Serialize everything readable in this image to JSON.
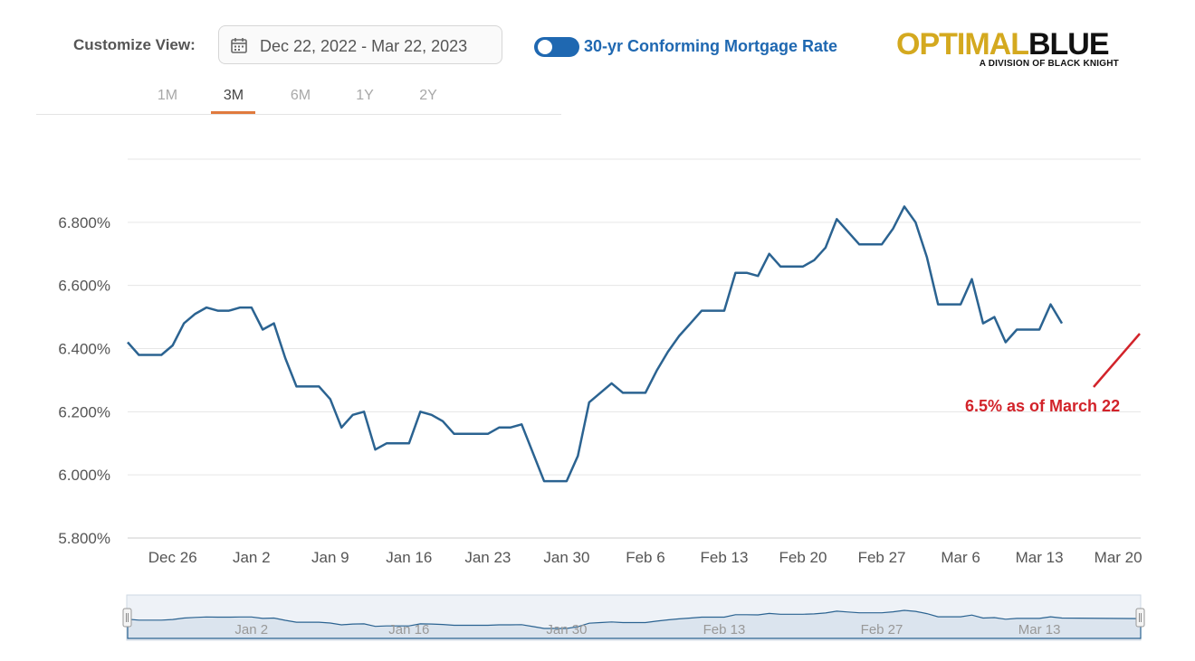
{
  "header": {
    "customize_label": "Customize View:",
    "date_range": "Dec 22, 2022 - Mar 22, 2023",
    "series_label": "30-yr Conforming Mortgage Rate",
    "logo_main_gold": "OPTIMAL",
    "logo_main_black": "BLUE",
    "logo_sub": "A DIVISION OF BLACK KNIGHT",
    "calendar_icon": "calendar-icon",
    "toggle_icon": "toggle-switch"
  },
  "range_tabs": [
    {
      "label": "1M",
      "active": false
    },
    {
      "label": "3M",
      "active": true
    },
    {
      "label": "6M",
      "active": false
    },
    {
      "label": "1Y",
      "active": false
    },
    {
      "label": "2Y",
      "active": false
    }
  ],
  "colors": {
    "line": "#2b6391",
    "accent": "#1f68b1",
    "annotation": "#d2232a",
    "tab_active": "#e07a3e"
  },
  "chart_data": {
    "type": "line",
    "title": "",
    "xlabel": "",
    "ylabel": "",
    "ylim": [
      5.8,
      7.0
    ],
    "xlim": [
      "2022-12-22",
      "2023-03-22"
    ],
    "yticks": [
      "6.800%",
      "6.600%",
      "6.400%",
      "6.200%",
      "6.000%",
      "5.800%"
    ],
    "ytick_values": [
      6.8,
      6.6,
      6.4,
      6.2,
      6.0,
      5.8
    ],
    "xticks": [
      "Dec 26",
      "Jan 2",
      "Jan 9",
      "Jan 16",
      "Jan 23",
      "Jan 30",
      "Feb 6",
      "Feb 13",
      "Feb 20",
      "Feb 27",
      "Mar 6",
      "Mar 13",
      "Mar 20"
    ],
    "xtick_dates": [
      "2022-12-26",
      "2023-01-02",
      "2023-01-09",
      "2023-01-16",
      "2023-01-23",
      "2023-01-30",
      "2023-02-06",
      "2023-02-13",
      "2023-02-20",
      "2023-02-27",
      "2023-03-06",
      "2023-03-13",
      "2023-03-20"
    ],
    "grid": true,
    "series": [
      {
        "points": [
          [
            "2022-12-22",
            6.42
          ],
          [
            "2022-12-23",
            6.38
          ],
          [
            "2022-12-24",
            6.38
          ],
          [
            "2022-12-25",
            6.38
          ],
          [
            "2022-12-26",
            6.41
          ],
          [
            "2022-12-27",
            6.48
          ],
          [
            "2022-12-28",
            6.51
          ],
          [
            "2022-12-29",
            6.53
          ],
          [
            "2022-12-30",
            6.52
          ],
          [
            "2022-12-31",
            6.52
          ],
          [
            "2023-01-01",
            6.53
          ],
          [
            "2023-01-02",
            6.53
          ],
          [
            "2023-01-03",
            6.46
          ],
          [
            "2023-01-04",
            6.48
          ],
          [
            "2023-01-05",
            6.37
          ],
          [
            "2023-01-06",
            6.28
          ],
          [
            "2023-01-07",
            6.28
          ],
          [
            "2023-01-08",
            6.28
          ],
          [
            "2023-01-09",
            6.24
          ],
          [
            "2023-01-10",
            6.15
          ],
          [
            "2023-01-11",
            6.19
          ],
          [
            "2023-01-12",
            6.2
          ],
          [
            "2023-01-13",
            6.08
          ],
          [
            "2023-01-14",
            6.1
          ],
          [
            "2023-01-15",
            6.1
          ],
          [
            "2023-01-16",
            6.1
          ],
          [
            "2023-01-17",
            6.2
          ],
          [
            "2023-01-18",
            6.19
          ],
          [
            "2023-01-19",
            6.17
          ],
          [
            "2023-01-20",
            6.13
          ],
          [
            "2023-01-21",
            6.13
          ],
          [
            "2023-01-22",
            6.13
          ],
          [
            "2023-01-23",
            6.13
          ],
          [
            "2023-01-24",
            6.15
          ],
          [
            "2023-01-25",
            6.15
          ],
          [
            "2023-01-26",
            6.16
          ],
          [
            "2023-01-27",
            6.07
          ],
          [
            "2023-01-28",
            5.98
          ],
          [
            "2023-01-29",
            5.98
          ],
          [
            "2023-01-30",
            5.98
          ],
          [
            "2023-01-31",
            6.06
          ],
          [
            "2023-02-01",
            6.23
          ],
          [
            "2023-02-02",
            6.26
          ],
          [
            "2023-02-03",
            6.29
          ],
          [
            "2023-02-04",
            6.26
          ],
          [
            "2023-02-05",
            6.26
          ],
          [
            "2023-02-06",
            6.26
          ],
          [
            "2023-02-07",
            6.33
          ],
          [
            "2023-02-08",
            6.39
          ],
          [
            "2023-02-09",
            6.44
          ],
          [
            "2023-02-10",
            6.48
          ],
          [
            "2023-02-11",
            6.52
          ],
          [
            "2023-02-12",
            6.52
          ],
          [
            "2023-02-13",
            6.52
          ],
          [
            "2023-02-14",
            6.64
          ],
          [
            "2023-02-15",
            6.64
          ],
          [
            "2023-02-16",
            6.63
          ],
          [
            "2023-02-17",
            6.7
          ],
          [
            "2023-02-18",
            6.66
          ],
          [
            "2023-02-19",
            6.66
          ],
          [
            "2023-02-20",
            6.66
          ],
          [
            "2023-02-21",
            6.68
          ],
          [
            "2023-02-22",
            6.72
          ],
          [
            "2023-02-23",
            6.81
          ],
          [
            "2023-02-24",
            6.77
          ],
          [
            "2023-02-25",
            6.73
          ],
          [
            "2023-02-26",
            6.73
          ],
          [
            "2023-02-27",
            6.73
          ],
          [
            "2023-02-28",
            6.78
          ],
          [
            "2023-03-01",
            6.85
          ],
          [
            "2023-03-02",
            6.8
          ],
          [
            "2023-03-03",
            6.69
          ],
          [
            "2023-03-04",
            6.54
          ],
          [
            "2023-03-05",
            6.54
          ],
          [
            "2023-03-06",
            6.54
          ],
          [
            "2023-03-07",
            6.62
          ],
          [
            "2023-03-08",
            6.48
          ],
          [
            "2023-03-09",
            6.5
          ],
          [
            "2023-03-10",
            6.42
          ],
          [
            "2023-03-11",
            6.46
          ],
          [
            "2023-03-12",
            6.46
          ],
          [
            "2023-03-13",
            6.46
          ],
          [
            "2023-03-14",
            6.54
          ],
          [
            "2023-03-15",
            6.48
          ]
        ]
      }
    ],
    "annotation": {
      "text": "6.5% as of March 22"
    },
    "navigator": {
      "ticks": [
        "Jan 2",
        "Jan 16",
        "Jan 30",
        "Feb 13",
        "Feb 27",
        "Mar 13"
      ],
      "tick_dates": [
        "2023-01-02",
        "2023-01-16",
        "2023-01-30",
        "2023-02-13",
        "2023-02-27",
        "2023-03-13"
      ]
    }
  }
}
